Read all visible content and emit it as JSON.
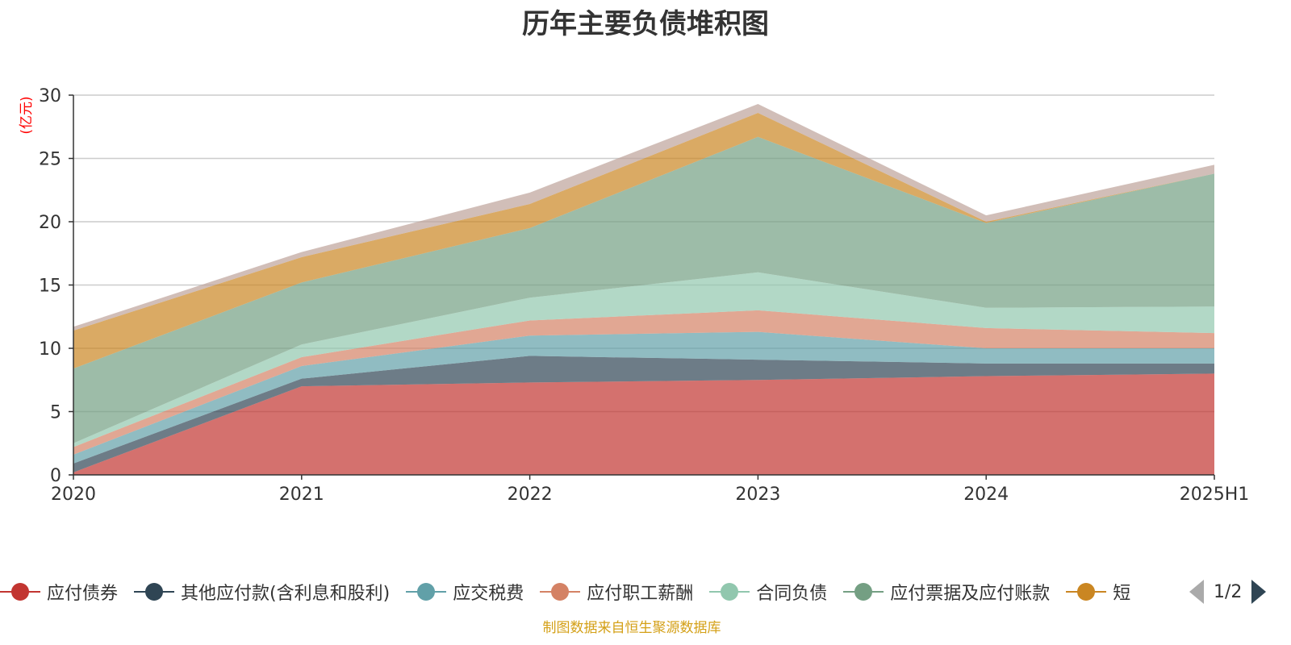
{
  "chart_data": {
    "type": "area",
    "stacked": true,
    "title": "历年主要负债堆积图",
    "ylabel": "(亿元)",
    "x": [
      "2020",
      "2021",
      "2022",
      "2023",
      "2024",
      "2025H1"
    ],
    "ylim": [
      0,
      30
    ],
    "yticks": [
      0,
      5,
      10,
      15,
      20,
      25,
      30
    ],
    "grid": true,
    "legend_position": "bottom",
    "series": [
      {
        "name": "应付债券",
        "color": "#c23531",
        "values": [
          0.2,
          7.0,
          7.3,
          7.5,
          7.8,
          8.0
        ]
      },
      {
        "name": "其他应付款(含利息和股利)",
        "color": "#2f4554",
        "values": [
          0.7,
          0.6,
          2.1,
          1.6,
          1.0,
          0.8
        ]
      },
      {
        "name": "应交税费",
        "color": "#61a0a8",
        "values": [
          0.7,
          1.0,
          1.6,
          2.2,
          1.2,
          1.2
        ]
      },
      {
        "name": "应付职工薪酬",
        "color": "#d48265",
        "values": [
          0.6,
          0.7,
          1.2,
          1.7,
          1.6,
          1.2
        ]
      },
      {
        "name": "合同负债",
        "color": "#91c7ae",
        "values": [
          0.3,
          1.0,
          1.8,
          3.0,
          1.6,
          2.1
        ]
      },
      {
        "name": "应付票据及应付账款",
        "color": "#749f83",
        "values": [
          5.9,
          4.9,
          5.5,
          10.7,
          6.7,
          10.5
        ]
      },
      {
        "color": "#ca8622",
        "values": [
          3.0,
          2.0,
          1.9,
          1.9,
          0.1,
          0.0
        ]
      },
      {
        "color": "#bda29a",
        "values": [
          0.3,
          0.4,
          0.9,
          0.7,
          0.5,
          0.7
        ]
      }
    ]
  },
  "legend": {
    "items": [
      "应付债券",
      "其他应付款(含利息和股利)",
      "应交税费",
      "应付职工薪酬",
      "合同负债",
      "应付票据及应付账款",
      "短"
    ],
    "page_text": "1/2"
  },
  "source_note": "制图数据来自恒生聚源数据库"
}
